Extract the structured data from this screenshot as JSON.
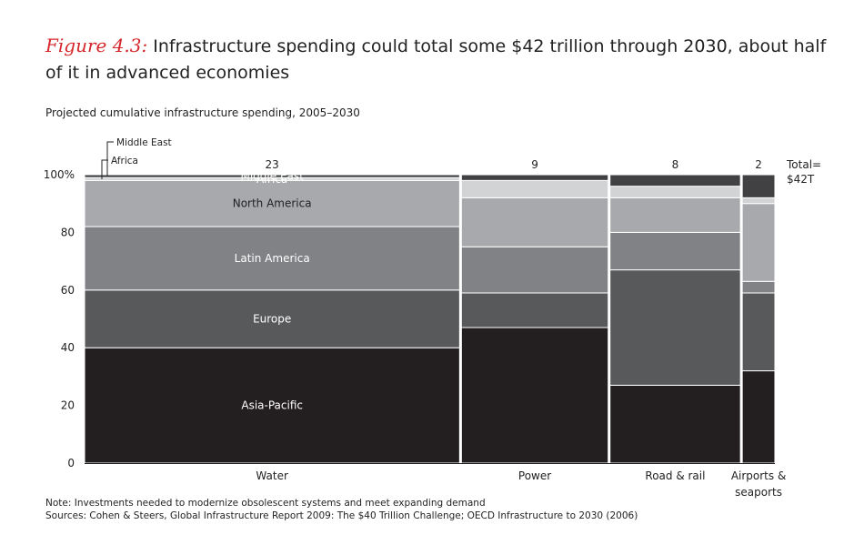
{
  "figure": {
    "label": "Figure 4.3:",
    "title": "Infrastructure spending could total some $42 trillion through 2030, about half of it in advanced economies",
    "subtitle": "Projected cumulative infrastructure spending, 2005–2030",
    "note": "Note: Investments needed to modernize obsolescent systems and meet expanding demand",
    "sources": "Sources: Cohen & Steers, Global Infrastructure Report 2009: The $40 Trillion Challenge; OECD Infrastructure to 2030 (2006)"
  },
  "colors": {
    "Asia-Pacific": "#231f20",
    "Europe": "#58595b",
    "Latin America": "#808285",
    "North America": "#a7a9ac",
    "Africa": "#d1d3d4",
    "Middle East": "#414042",
    "separator": "#ffffff"
  },
  "chart_data": {
    "type": "mekko",
    "title": "Projected cumulative infrastructure spending, 2005–2030",
    "unit_widths": "trillion USD",
    "ylabel": "",
    "ylim": [
      0,
      100
    ],
    "yticks": [
      0,
      20,
      40,
      60,
      80,
      100
    ],
    "ytick_labels": [
      "0",
      "20",
      "40",
      "60",
      "80",
      "100%"
    ],
    "total_label": "Total=\n$42T",
    "categories": [
      "Water",
      "Power",
      "Road & rail",
      "Airports & seaports"
    ],
    "category_labels": [
      "Water",
      "Power",
      "Road & rail",
      "Airports &\nseaports"
    ],
    "widths": [
      23,
      9,
      8,
      2
    ],
    "series": [
      {
        "name": "Asia-Pacific",
        "values": [
          40,
          47,
          27,
          32
        ],
        "label": "Asia-Pacific"
      },
      {
        "name": "Europe",
        "values": [
          20,
          12,
          40,
          27
        ],
        "label": "Europe"
      },
      {
        "name": "Latin America",
        "values": [
          22,
          16,
          13,
          4
        ],
        "label": "Latin America"
      },
      {
        "name": "North America",
        "values": [
          16,
          17,
          12,
          27
        ],
        "label": "North America"
      },
      {
        "name": "Africa",
        "values": [
          1,
          6,
          4,
          2
        ],
        "label": "Africa"
      },
      {
        "name": "Middle East",
        "values": [
          1,
          2,
          4,
          8
        ],
        "label": "Middle East"
      }
    ],
    "inline_label_column": 0,
    "callouts": [
      "Middle East",
      "Africa"
    ]
  }
}
